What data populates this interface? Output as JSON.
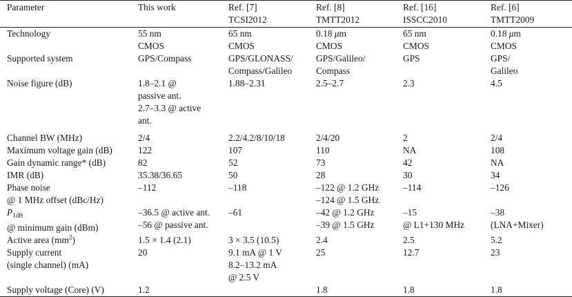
{
  "header": [
    [
      "Parameter"
    ],
    [
      "This work"
    ],
    [
      "Ref. [7]",
      "TCSI2012"
    ],
    [
      "Ref. [8]",
      "TMTT2012"
    ],
    [
      "Ref. [16]",
      "ISSCC2010"
    ],
    [
      "Ref. [6]",
      "TMTT2009"
    ]
  ],
  "rows": [
    [
      [
        "Technology"
      ],
      [
        "55 nm",
        "CMOS"
      ],
      [
        "65 nm",
        "CMOS"
      ],
      [
        "0.18 μm",
        "CMOS"
      ],
      [
        "65 nm",
        "CMOS"
      ],
      [
        "0.18 μm",
        "CMOS"
      ]
    ],
    [
      [
        "Supported system"
      ],
      [
        "GPS/Compass"
      ],
      [
        "GPS/GLONASS/",
        "Compass/Galileo"
      ],
      [
        "GPS/Galileo/",
        "Compass"
      ],
      [
        "GPS"
      ],
      [
        "GPS/",
        "Galileo"
      ]
    ],
    [
      [
        "Noise figure (dB)"
      ],
      [
        "1.8–2.1 @",
        "passive ant.",
        "2.7–3.3  @  active",
        "ant."
      ],
      [
        "1.88–2.31"
      ],
      [
        "2.5–2.7"
      ],
      [
        "2.3"
      ],
      [
        "4.5"
      ]
    ],
    [
      [
        "Channel BW (MHz)"
      ],
      [
        "2/4"
      ],
      [
        "2.2/4.2/8/10/18"
      ],
      [
        "2/4/20"
      ],
      [
        "2"
      ],
      [
        "2/4"
      ]
    ],
    [
      [
        "Maximum voltage gain (dB)"
      ],
      [
        "122"
      ],
      [
        "107"
      ],
      [
        "110"
      ],
      [
        "NA"
      ],
      [
        "108"
      ]
    ],
    [
      [
        "Gain dynamic range* (dB)"
      ],
      [
        "82"
      ],
      [
        "52"
      ],
      [
        "73"
      ],
      [
        "42"
      ],
      [
        "NA"
      ]
    ],
    [
      [
        "IMR (dB)"
      ],
      [
        "35.38/36.65"
      ],
      [
        "50"
      ],
      [
        "28"
      ],
      [
        "30"
      ],
      [
        "34"
      ]
    ],
    [
      [
        "Phase noise",
        "@ 1 MHz offset (dBc/Hz)"
      ],
      [
        "–112"
      ],
      [
        "–118"
      ],
      [
        "–122 @ 1.2 GHz",
        "–124 @ 1.5 GHz"
      ],
      [
        "–114"
      ],
      [
        "–126"
      ]
    ],
    [
      [
        "P1dB",
        "@ minimum gain (dBm)"
      ],
      [
        "–36.5 @ active ant.",
        "–56 @ passive ant."
      ],
      [
        "–61"
      ],
      [
        "–42 @ 1.2 GHz",
        "–39 @ 1.5 GHz"
      ],
      [
        "–15",
        "@ L1+130 MHz"
      ],
      [
        "–38",
        "(LNA+Mixer)"
      ]
    ],
    [
      [
        "Active area (mm2)"
      ],
      [
        "1.5 × 1.4 (2.1)"
      ],
      [
        "3 × 3.5 (10.5)"
      ],
      [
        "2.4"
      ],
      [
        "2.5"
      ],
      [
        "5.2"
      ]
    ],
    [
      [
        "Supply current",
        "(single channel) (mA)"
      ],
      [
        "20"
      ],
      [
        "9.1 mA @ 1 V",
        "8.2–13.2 mA",
        "@ 2.5 V"
      ],
      [
        "25"
      ],
      [
        "12.7"
      ],
      [
        "23"
      ]
    ],
    [
      [
        "Supply voltage (Core) (V)"
      ],
      [
        "1.2"
      ],
      [
        ""
      ],
      [
        "1.8"
      ],
      [
        "1.8"
      ],
      [
        "1.8"
      ]
    ]
  ]
}
